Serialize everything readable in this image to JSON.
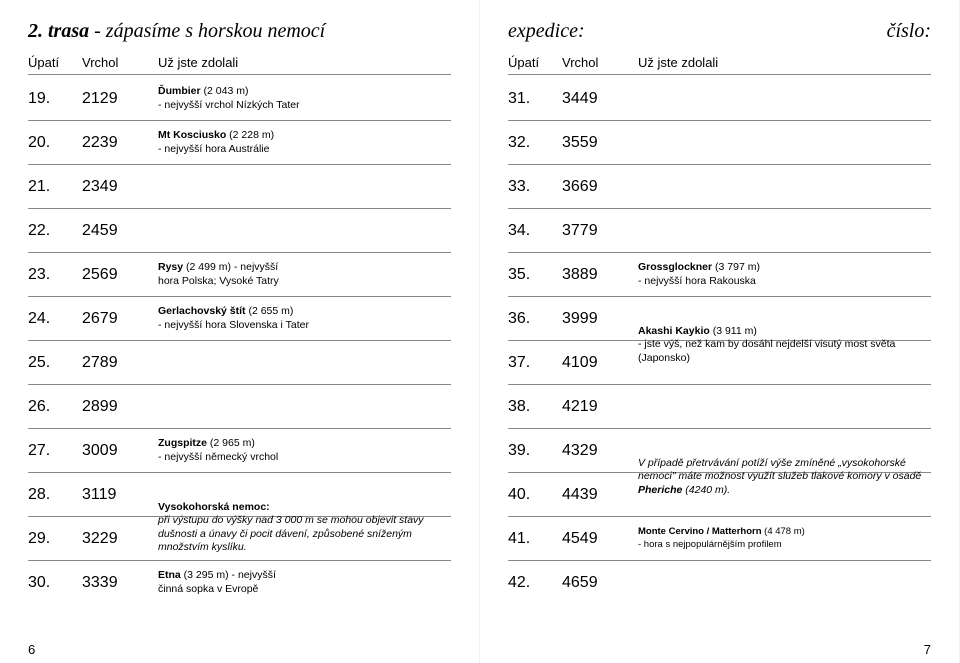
{
  "left": {
    "title_num": "2.",
    "title_word": "trasa",
    "title_rest": "- zápasíme s horskou nemocí",
    "headers": {
      "c1": "Úpatí",
      "c2": "Vrchol",
      "c3": "Už jste zdolali"
    },
    "rows": [
      {
        "idx": "19.",
        "val": "2129",
        "bold": "Ďumbier",
        "rest": " (2 043 m)",
        "line2": "- nejvyšší vrchol Nízkých Tater"
      },
      {
        "idx": "20.",
        "val": "2239",
        "bold": "Mt Kosciusko",
        "rest": " (2 228 m)",
        "line2": "- nejvyšší hora Austrálie"
      },
      {
        "idx": "21.",
        "val": "2349"
      },
      {
        "idx": "22.",
        "val": "2459"
      },
      {
        "idx": "23.",
        "val": "2569",
        "bold": "Rysy",
        "rest": " (2 499 m) - nejvyšší",
        "line2": "hora Polska; Vysoké Tatry"
      },
      {
        "idx": "24.",
        "val": "2679",
        "bold": "Gerlachovský štít",
        "rest": " (2 655 m)",
        "line2": "- nejvyšší hora Slovenska i Tater"
      },
      {
        "idx": "25.",
        "val": "2789"
      },
      {
        "idx": "26.",
        "val": "2899"
      },
      {
        "idx": "27.",
        "val": "3009",
        "bold": "Zugspitze",
        "rest": " (2 965 m)",
        "line2": "- nejvyšší německý vrchol"
      },
      {
        "idx": "28.",
        "val": "3119",
        "overhang": true,
        "ov_bold": "Vysokohorská nemoc:",
        "ov_italic": "při výstupu do výšky nad 3 000 m se mohou objevit stavy dušnosti a únavy či pocit dávení, způsobené sníženým množstvím kyslíku."
      },
      {
        "idx": "29.",
        "val": "3229"
      },
      {
        "idx": "30.",
        "val": "3339",
        "bold": "Etna",
        "rest": " (3 295 m) - nejvyšší",
        "line2": "činná sopka v Evropě"
      }
    ],
    "pagenum": "6"
  },
  "right": {
    "title_left": "expedice:",
    "title_right": "číslo:",
    "headers": {
      "c1": "Úpatí",
      "c2": "Vrchol",
      "c3": "Už jste zdolali"
    },
    "rows": [
      {
        "idx": "31.",
        "val": "3449"
      },
      {
        "idx": "32.",
        "val": "3559"
      },
      {
        "idx": "33.",
        "val": "3669"
      },
      {
        "idx": "34.",
        "val": "3779"
      },
      {
        "idx": "35.",
        "val": "3889",
        "bold": "Grossglockner",
        "rest": " (3 797 m)",
        "line2": "- nejvyšší hora Rakouska"
      },
      {
        "idx": "36.",
        "val": "3999",
        "overhang": true,
        "ov_bold": "Akashi Kaykio",
        "ov_rest": " (3 911 m)",
        "ov_plain": "- jste výš, než kam by dosáhl nejdelší visutý most světa (Japonsko)"
      },
      {
        "idx": "37.",
        "val": "4109"
      },
      {
        "idx": "38.",
        "val": "4219"
      },
      {
        "idx": "39.",
        "val": "4329",
        "overhang": true,
        "ov_italic_only": "V případě přetrvávání potíží výše zmíněné „vysokohorské nemoci\" máte možnost využít služeb tlakové komory v osadě ",
        "ov_italic_bold": "Pheriche",
        "ov_italic_tail": " (4240 m)."
      },
      {
        "idx": "40.",
        "val": "4439"
      },
      {
        "idx": "41.",
        "val": "4549",
        "bold": "Monte Cervino / Matterhorn",
        "rest": " (4 478 m)",
        "line2": "- hora s nejpopulárnějším profilem",
        "small": true
      },
      {
        "idx": "42.",
        "val": "4659"
      }
    ],
    "pagenum": "7"
  }
}
